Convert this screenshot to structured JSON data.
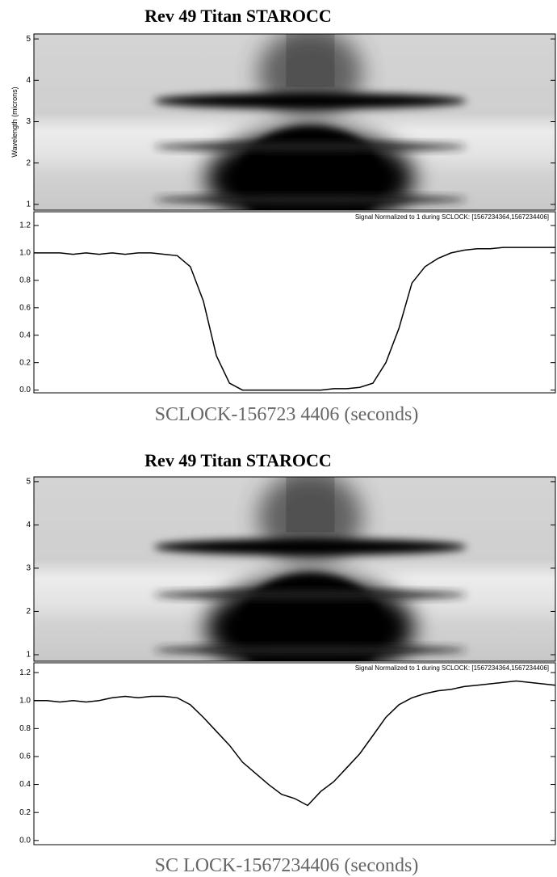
{
  "chart_data": [
    {
      "type": "heatmap",
      "title": "Rev 49 Titan STAROCC",
      "ylabel": "Wavelength (microns)",
      "ylim": [
        0.86,
        5.12
      ],
      "yticks": [
        1,
        2,
        3,
        4,
        5
      ]
    },
    {
      "type": "line",
      "annotation": "Signal Normalized to 1 during SCLOCK: [1567234364,1567234406]",
      "xlabel": "SCLOCK-156723 4406 (seconds)",
      "color": "#000000",
      "ylim": [
        -0.02,
        1.3
      ],
      "yticks": [
        {
          "value": 0,
          "label": "0.0"
        },
        0.2,
        0.4,
        0.6,
        0.8,
        {
          "value": 1,
          "label": "1.0"
        },
        1.2
      ],
      "values": [
        1.0,
        1.0,
        1.0,
        0.99,
        1.0,
        0.99,
        1.0,
        0.99,
        1.0,
        1.0,
        0.99,
        0.98,
        0.9,
        0.65,
        0.25,
        0.05,
        0.0,
        0.0,
        0.0,
        0.0,
        0.0,
        0.0,
        0.0,
        0.01,
        0.01,
        0.02,
        0.05,
        0.2,
        0.45,
        0.78,
        0.9,
        0.96,
        1.0,
        1.02,
        1.03,
        1.03,
        1.04,
        1.04,
        1.04,
        1.04,
        1.04
      ]
    },
    {
      "type": "heatmap",
      "title": "Rev 49 Titan STAROCC",
      "ylim": [
        0.85,
        5.11
      ],
      "yticks": [
        1,
        2,
        3,
        4,
        5
      ]
    },
    {
      "type": "line",
      "annotation": "Signal Normalized to 1 during SCLOCK: [1567234364,1567234406]",
      "xlabel": "SC LOCK-1567234406 (seconds)",
      "color": "#000000",
      "ylim": [
        -0.03,
        1.27
      ],
      "yticks": [
        {
          "value": 0,
          "label": "0.0"
        },
        0.2,
        0.4,
        0.6,
        0.8,
        {
          "value": 1,
          "label": "1.0"
        },
        1.2
      ],
      "values": [
        1.0,
        1.0,
        0.99,
        1.0,
        0.99,
        1.0,
        1.02,
        1.03,
        1.02,
        1.03,
        1.03,
        1.02,
        0.97,
        0.88,
        0.78,
        0.68,
        0.56,
        0.48,
        0.4,
        0.33,
        0.3,
        0.25,
        0.35,
        0.42,
        0.52,
        0.62,
        0.75,
        0.88,
        0.97,
        1.02,
        1.05,
        1.07,
        1.08,
        1.1,
        1.11,
        1.12,
        1.13,
        1.14,
        1.13,
        1.12,
        1.11
      ]
    }
  ]
}
